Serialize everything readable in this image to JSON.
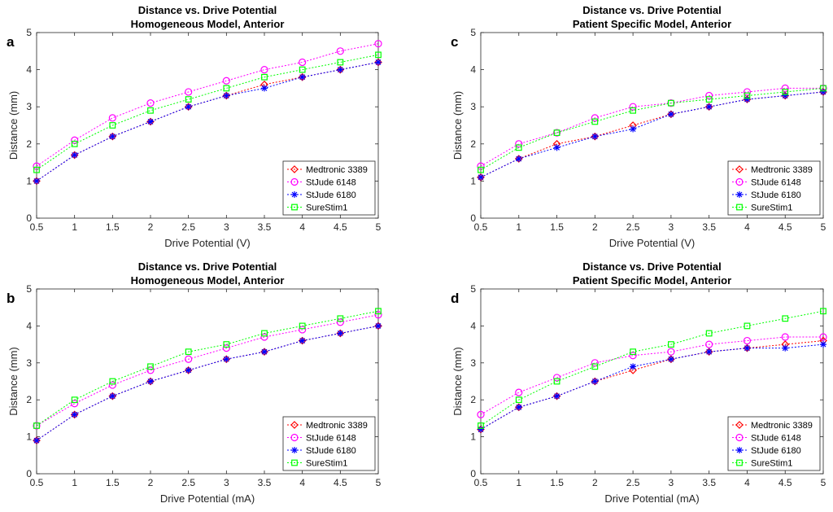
{
  "chart_data": [
    {
      "type": "line",
      "letter": "a",
      "title": "Distance vs. Drive Potential",
      "subtitle": "Homogeneous Model, Anterior",
      "xlabel": "Drive Potential (V)",
      "ylabel": "Distance (mm)",
      "xlim": [
        0.5,
        5
      ],
      "ylim": [
        0,
        5
      ],
      "xticks": [
        "0.5",
        "1",
        "1.5",
        "2",
        "2.5",
        "3",
        "3.5",
        "4",
        "4.5",
        "5"
      ],
      "yticks": [
        "0",
        "1",
        "2",
        "3",
        "4",
        "5"
      ],
      "legend": "bottom-right",
      "x": [
        0.5,
        1,
        1.5,
        2,
        2.5,
        3,
        3.5,
        4,
        4.5,
        5
      ],
      "series": [
        {
          "name": "Medtronic 3389",
          "color": "#ff0000",
          "marker": "diamond",
          "values": [
            1.0,
            1.7,
            2.2,
            2.6,
            3.0,
            3.3,
            3.6,
            3.8,
            4.0,
            4.2
          ]
        },
        {
          "name": "StJude 6148",
          "color": "#ff00ff",
          "marker": "circle",
          "values": [
            1.4,
            2.1,
            2.7,
            3.1,
            3.4,
            3.7,
            4.0,
            4.2,
            4.5,
            4.7
          ]
        },
        {
          "name": "StJude 6180",
          "color": "#0000ff",
          "marker": "star",
          "values": [
            1.0,
            1.7,
            2.2,
            2.6,
            3.0,
            3.3,
            3.5,
            3.8,
            4.0,
            4.2
          ]
        },
        {
          "name": "SureStim1",
          "color": "#00ff00",
          "marker": "square",
          "values": [
            1.3,
            2.0,
            2.5,
            2.9,
            3.2,
            3.5,
            3.8,
            4.0,
            4.2,
            4.4
          ]
        }
      ]
    },
    {
      "type": "line",
      "letter": "c",
      "title": "Distance vs. Drive Potential",
      "subtitle": "Patient Specific Model, Anterior",
      "xlabel": "Drive Potential (V)",
      "ylabel": "Distance (mm)",
      "xlim": [
        0.5,
        5
      ],
      "ylim": [
        0,
        5
      ],
      "xticks": [
        "0.5",
        "1",
        "1.5",
        "2",
        "2.5",
        "3",
        "3.5",
        "4",
        "4.5",
        "5"
      ],
      "yticks": [
        "0",
        "1",
        "2",
        "3",
        "4",
        "5"
      ],
      "legend": "bottom-right",
      "x": [
        0.5,
        1,
        1.5,
        2,
        2.5,
        3,
        3.5,
        4,
        4.5,
        5
      ],
      "series": [
        {
          "name": "Medtronic 3389",
          "color": "#ff0000",
          "marker": "diamond",
          "values": [
            1.1,
            1.6,
            2.0,
            2.2,
            2.5,
            2.8,
            3.0,
            3.2,
            3.3,
            3.4
          ]
        },
        {
          "name": "StJude 6148",
          "color": "#ff00ff",
          "marker": "circle",
          "values": [
            1.4,
            2.0,
            2.3,
            2.7,
            3.0,
            3.1,
            3.3,
            3.4,
            3.5,
            3.5
          ]
        },
        {
          "name": "StJude 6180",
          "color": "#0000ff",
          "marker": "star",
          "values": [
            1.1,
            1.6,
            1.9,
            2.2,
            2.4,
            2.8,
            3.0,
            3.2,
            3.3,
            3.4
          ]
        },
        {
          "name": "SureStim1",
          "color": "#00ff00",
          "marker": "square",
          "values": [
            1.3,
            1.9,
            2.3,
            2.6,
            2.9,
            3.1,
            3.2,
            3.3,
            3.4,
            3.5
          ]
        }
      ]
    },
    {
      "type": "line",
      "letter": "b",
      "title": "Distance vs. Drive Potential",
      "subtitle": "Homogeneous Model, Anterior",
      "xlabel": "Drive Potential (mA)",
      "ylabel": "Distance (mm)",
      "xlim": [
        0.5,
        5
      ],
      "ylim": [
        0,
        5
      ],
      "xticks": [
        "0.5",
        "1",
        "1.5",
        "2",
        "2.5",
        "3",
        "3.5",
        "4",
        "4.5",
        "5"
      ],
      "yticks": [
        "0",
        "1",
        "2",
        "3",
        "4",
        "5"
      ],
      "legend": "bottom-right",
      "x": [
        0.5,
        1,
        1.5,
        2,
        2.5,
        3,
        3.5,
        4,
        4.5,
        5
      ],
      "series": [
        {
          "name": "Medtronic 3389",
          "color": "#ff0000",
          "marker": "diamond",
          "values": [
            0.9,
            1.6,
            2.1,
            2.5,
            2.8,
            3.1,
            3.3,
            3.6,
            3.8,
            4.0
          ]
        },
        {
          "name": "StJude 6148",
          "color": "#ff00ff",
          "marker": "circle",
          "values": [
            1.3,
            1.9,
            2.4,
            2.8,
            3.1,
            3.4,
            3.7,
            3.9,
            4.1,
            4.3
          ]
        },
        {
          "name": "StJude 6180",
          "color": "#0000ff",
          "marker": "star",
          "values": [
            0.9,
            1.6,
            2.1,
            2.5,
            2.8,
            3.1,
            3.3,
            3.6,
            3.8,
            4.0
          ]
        },
        {
          "name": "SureStim1",
          "color": "#00ff00",
          "marker": "square",
          "values": [
            1.3,
            2.0,
            2.5,
            2.9,
            3.3,
            3.5,
            3.8,
            4.0,
            4.2,
            4.4
          ]
        }
      ]
    },
    {
      "type": "line",
      "letter": "d",
      "title": "Distance vs. Drive Potential",
      "subtitle": "Patient Specific Model, Anterior",
      "xlabel": "Drive Potential (mA)",
      "ylabel": "Distance (mm)",
      "xlim": [
        0.5,
        5
      ],
      "ylim": [
        0,
        5
      ],
      "xticks": [
        "0.5",
        "1",
        "1.5",
        "2",
        "2.5",
        "3",
        "3.5",
        "4",
        "4.5",
        "5"
      ],
      "yticks": [
        "0",
        "1",
        "2",
        "3",
        "4",
        "5"
      ],
      "legend": "bottom-right",
      "x": [
        0.5,
        1,
        1.5,
        2,
        2.5,
        3,
        3.5,
        4,
        4.5,
        5
      ],
      "series": [
        {
          "name": "Medtronic 3389",
          "color": "#ff0000",
          "marker": "diamond",
          "values": [
            1.2,
            1.8,
            2.1,
            2.5,
            2.8,
            3.1,
            3.3,
            3.4,
            3.5,
            3.6
          ]
        },
        {
          "name": "StJude 6148",
          "color": "#ff00ff",
          "marker": "circle",
          "values": [
            1.6,
            2.2,
            2.6,
            3.0,
            3.2,
            3.3,
            3.5,
            3.6,
            3.7,
            3.7
          ]
        },
        {
          "name": "StJude 6180",
          "color": "#0000ff",
          "marker": "star",
          "values": [
            1.2,
            1.8,
            2.1,
            2.5,
            2.9,
            3.1,
            3.3,
            3.4,
            3.4,
            3.5
          ]
        },
        {
          "name": "SureStim1",
          "color": "#00ff00",
          "marker": "square",
          "values": [
            1.3,
            2.0,
            2.5,
            2.9,
            3.3,
            3.5,
            3.8,
            4.0,
            4.2,
            4.4
          ]
        }
      ]
    }
  ]
}
